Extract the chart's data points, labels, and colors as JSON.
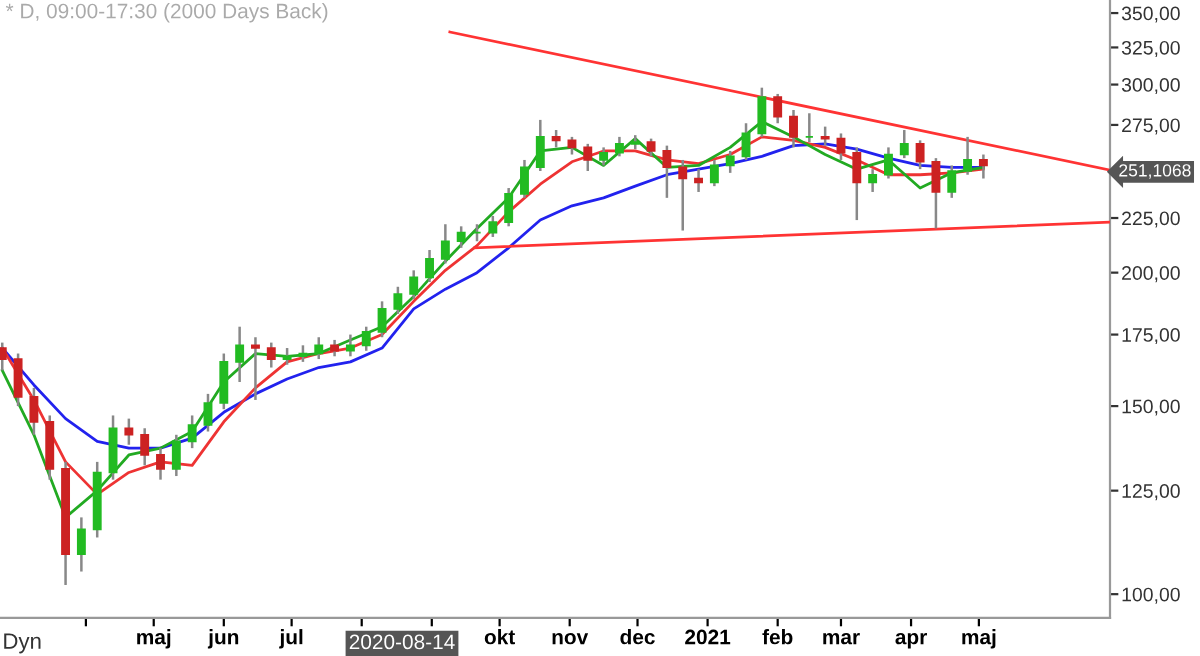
{
  "chart_data": {
    "type": "candlestick",
    "title": "* D, 09:00-17:30 (2000 Days Back)",
    "x": [
      "2020-02-24",
      "2020-03-02",
      "2020-03-09",
      "2020-03-16",
      "2020-03-23",
      "2020-03-30",
      "2020-04-06",
      "2020-04-13",
      "2020-04-20",
      "2020-04-27",
      "2020-05-04",
      "2020-05-11",
      "2020-05-18",
      "2020-05-25",
      "2020-06-01",
      "2020-06-08",
      "2020-06-15",
      "2020-06-22",
      "2020-06-29",
      "2020-07-06",
      "2020-07-13",
      "2020-07-20",
      "2020-07-27",
      "2020-08-03",
      "2020-08-10",
      "2020-08-17",
      "2020-08-24",
      "2020-08-31",
      "2020-09-07",
      "2020-09-14",
      "2020-09-21",
      "2020-09-28",
      "2020-10-05",
      "2020-10-12",
      "2020-10-19",
      "2020-10-26",
      "2020-11-02",
      "2020-11-09",
      "2020-11-16",
      "2020-11-23",
      "2020-11-30",
      "2020-12-07",
      "2020-12-14",
      "2020-12-21",
      "2020-12-28",
      "2021-01-04",
      "2021-01-11",
      "2021-01-18",
      "2021-01-25",
      "2021-02-01",
      "2021-02-08",
      "2021-02-15",
      "2021-02-22",
      "2021-03-01",
      "2021-03-08",
      "2021-03-15",
      "2021-03-22",
      "2021-03-29",
      "2021-04-05",
      "2021-04-12",
      "2021-04-19",
      "2021-04-26",
      "2021-05-03"
    ],
    "ohlc": [
      [
        170,
        172,
        162,
        166
      ],
      [
        166,
        168,
        150,
        153
      ],
      [
        153,
        156,
        141,
        145
      ],
      [
        145,
        147,
        128,
        131
      ],
      [
        131,
        133,
        102,
        109
      ],
      [
        109,
        118,
        105,
        115
      ],
      [
        115,
        133,
        113,
        130
      ],
      [
        130,
        147,
        128,
        143
      ],
      [
        143,
        146,
        138,
        141
      ],
      [
        141,
        143,
        132,
        135
      ],
      [
        135,
        137,
        128,
        131
      ],
      [
        131,
        141,
        129,
        139
      ],
      [
        139,
        147,
        137,
        144
      ],
      [
        144,
        154,
        142,
        151
      ],
      [
        151,
        168,
        149,
        165
      ],
      [
        165,
        178,
        158,
        171
      ],
      [
        171,
        174,
        152,
        170
      ],
      [
        170,
        172,
        163,
        166
      ],
      [
        166,
        170,
        164,
        167
      ],
      [
        167,
        171,
        165,
        168
      ],
      [
        168,
        174,
        166,
        171
      ],
      [
        171,
        173,
        167,
        169
      ],
      [
        169,
        175,
        167,
        171
      ],
      [
        171,
        178,
        169,
        176
      ],
      [
        176,
        188,
        174,
        185
      ],
      [
        185,
        194,
        183,
        191
      ],
      [
        191,
        201,
        189,
        198
      ],
      [
        198,
        210,
        196,
        206
      ],
      [
        206,
        222,
        204,
        214
      ],
      [
        214,
        221,
        211,
        218
      ],
      [
        218,
        222,
        214,
        218
      ],
      [
        218,
        226,
        216,
        223
      ],
      [
        223,
        240,
        221,
        237
      ],
      [
        237,
        255,
        235,
        251
      ],
      [
        251,
        278,
        249,
        268
      ],
      [
        268,
        272,
        262,
        266
      ],
      [
        266,
        268,
        258,
        262
      ],
      [
        262,
        264,
        249,
        255
      ],
      [
        255,
        262,
        252,
        259
      ],
      [
        259,
        268,
        257,
        264
      ],
      [
        264,
        269,
        261,
        265
      ],
      [
        265,
        267,
        257,
        260
      ],
      [
        260,
        263,
        235,
        251
      ],
      [
        251,
        255,
        219,
        245
      ],
      [
        245,
        250,
        238,
        243
      ],
      [
        243,
        255,
        241,
        252
      ],
      [
        252,
        260,
        248,
        257
      ],
      [
        257,
        276,
        255,
        270
      ],
      [
        270,
        298,
        268,
        292
      ],
      [
        292,
        294,
        276,
        280
      ],
      [
        280,
        284,
        262,
        268
      ],
      [
        268,
        282,
        265,
        268
      ],
      [
        268,
        274,
        263,
        267
      ],
      [
        267,
        270,
        255,
        259
      ],
      [
        259,
        262,
        224,
        243
      ],
      [
        243,
        250,
        238,
        247
      ],
      [
        247,
        262,
        245,
        258
      ],
      [
        258,
        272,
        256,
        264
      ],
      [
        264,
        266,
        250,
        254
      ],
      [
        254,
        256,
        220,
        238
      ],
      [
        238,
        252,
        235,
        249
      ],
      [
        249,
        268,
        247,
        255
      ],
      [
        255,
        258,
        245,
        252
      ]
    ],
    "colors": [
      "#cc2222",
      "#cc2222",
      "#cc2222",
      "#cc2222",
      "#cc2222",
      "#22bb22",
      "#22bb22",
      "#22bb22",
      "#cc2222",
      "#cc2222",
      "#cc2222",
      "#22bb22",
      "#22bb22",
      "#22bb22",
      "#22bb22",
      "#22bb22",
      "#cc2222",
      "#cc2222",
      "#22bb22",
      "#22bb22",
      "#22bb22",
      "#cc2222",
      "#22bb22",
      "#22bb22",
      "#22bb22",
      "#22bb22",
      "#22bb22",
      "#22bb22",
      "#22bb22",
      "#22bb22",
      "#22bb22",
      "#22bb22",
      "#22bb22",
      "#22bb22",
      "#22bb22",
      "#cc2222",
      "#cc2222",
      "#cc2222",
      "#22bb22",
      "#22bb22",
      "#22bb22",
      "#cc2222",
      "#cc2222",
      "#cc2222",
      "#cc2222",
      "#22bb22",
      "#22bb22",
      "#22bb22",
      "#22bb22",
      "#cc2222",
      "#cc2222",
      "#22bb22",
      "#cc2222",
      "#cc2222",
      "#cc2222",
      "#22bb22",
      "#22bb22",
      "#22bb22",
      "#cc2222",
      "#cc2222",
      "#22bb22",
      "#22bb22",
      "#cc2222"
    ],
    "series": [
      {
        "type": "line",
        "color": "#2222ee",
        "x": [
          "2020-02-24",
          "2020-03-09",
          "2020-03-23",
          "2020-04-06",
          "2020-04-20",
          "2020-05-04",
          "2020-05-18",
          "2020-06-01",
          "2020-06-15",
          "2020-06-29",
          "2020-07-13",
          "2020-07-27",
          "2020-08-10",
          "2020-08-24",
          "2020-09-07",
          "2020-09-21",
          "2020-10-05",
          "2020-10-19",
          "2020-11-02",
          "2020-11-16",
          "2020-11-30",
          "2020-12-14",
          "2020-12-28",
          "2021-01-11",
          "2021-01-25",
          "2021-02-08",
          "2021-02-22",
          "2021-03-08",
          "2021-03-22",
          "2021-04-05",
          "2021-04-19",
          "2021-05-03"
        ],
        "values": [
          170,
          157,
          146,
          139,
          137,
          137,
          140,
          148,
          154,
          159,
          163,
          165,
          170,
          185,
          193,
          200,
          211,
          224,
          231,
          235,
          241,
          247,
          250,
          253,
          257,
          263,
          264,
          261,
          256,
          252,
          251,
          251
        ]
      },
      {
        "type": "line",
        "color": "#ee3333",
        "x": [
          "2020-02-24",
          "2020-03-09",
          "2020-03-23",
          "2020-04-06",
          "2020-04-20",
          "2020-05-04",
          "2020-05-18",
          "2020-06-01",
          "2020-06-15",
          "2020-06-29",
          "2020-07-13",
          "2020-07-27",
          "2020-08-10",
          "2020-08-24",
          "2020-09-07",
          "2020-09-21",
          "2020-10-05",
          "2020-10-19",
          "2020-11-02",
          "2020-11-16",
          "2020-11-30",
          "2020-12-14",
          "2020-12-28",
          "2021-01-11",
          "2021-01-25",
          "2021-02-08",
          "2021-02-22",
          "2021-03-08",
          "2021-03-22",
          "2021-04-05",
          "2021-04-19",
          "2021-05-03"
        ],
        "values": [
          170,
          152,
          133,
          124,
          130,
          133,
          132,
          145,
          156,
          165,
          168,
          170,
          175,
          188,
          201,
          212,
          228,
          242,
          254,
          260,
          260,
          255,
          253,
          258,
          268,
          266,
          262,
          255,
          247,
          247,
          248,
          250
        ]
      },
      {
        "type": "line",
        "color": "#22aa22",
        "x": [
          "2020-02-24",
          "2020-03-09",
          "2020-03-23",
          "2020-04-06",
          "2020-04-20",
          "2020-05-04",
          "2020-05-18",
          "2020-06-01",
          "2020-06-15",
          "2020-06-29",
          "2020-07-13",
          "2020-07-27",
          "2020-08-10",
          "2020-08-24",
          "2020-09-07",
          "2020-09-21",
          "2020-10-05",
          "2020-10-19",
          "2020-11-02",
          "2020-11-16",
          "2020-11-30",
          "2020-12-14",
          "2020-12-28",
          "2021-01-11",
          "2021-01-25",
          "2021-02-08",
          "2021-02-22",
          "2021-03-08",
          "2021-03-22",
          "2021-04-05",
          "2021-04-19",
          "2021-05-03"
        ],
        "values": [
          162,
          141,
          118,
          125,
          135,
          137,
          142,
          158,
          168,
          167,
          168,
          173,
          178,
          190,
          205,
          220,
          235,
          260,
          262,
          252,
          267,
          251,
          252,
          262,
          277,
          268,
          258,
          250,
          255,
          240,
          248,
          251
        ]
      },
      {
        "type": "line",
        "color": "#ff3333",
        "x": [
          "2020-09-09",
          "2021-06-28"
        ],
        "values": [
          336,
          249.5
        ]
      },
      {
        "type": "line",
        "color": "#ff3333",
        "x": [
          "2020-09-20",
          "2021-06-28"
        ],
        "values": [
          211,
          223
        ]
      }
    ],
    "log": "y",
    "xlim": [
      "2020-02-23",
      "2021-06-28"
    ],
    "ylim": [
      95,
      360
    ],
    "yticks": [
      {
        "value": 100,
        "label": "100,00"
      },
      {
        "value": 125,
        "label": "125,00"
      },
      {
        "value": 150,
        "label": "150,00"
      },
      {
        "value": 175,
        "label": "175,00"
      },
      {
        "value": 200,
        "label": "200,00"
      },
      {
        "value": 225,
        "label": "225,00"
      },
      {
        "value": 250,
        "label": null
      },
      {
        "value": 275,
        "label": "275,00"
      },
      {
        "value": 300,
        "label": "300,00"
      },
      {
        "value": 325,
        "label": "325,00"
      },
      {
        "value": 350,
        "label": "350,00"
      }
    ],
    "xticks": [
      {
        "value": "2020-04-01",
        "label": null
      },
      {
        "value": "2020-05-01",
        "label": "maj"
      },
      {
        "value": "2020-06-01",
        "label": "jun"
      },
      {
        "value": "2020-07-01",
        "label": "jul"
      },
      {
        "value": "2020-08-01",
        "label": null
      },
      {
        "value": "2020-09-01",
        "label": null
      },
      {
        "value": "2020-10-01",
        "label": "okt"
      },
      {
        "value": "2020-11-01",
        "label": "nov"
      },
      {
        "value": "2020-12-01",
        "label": "dec"
      },
      {
        "value": "2021-01-01",
        "label": "2021"
      },
      {
        "value": "2021-02-01",
        "label": "feb"
      },
      {
        "value": "2021-03-01",
        "label": "mar"
      },
      {
        "value": "2021-04-01",
        "label": "apr"
      },
      {
        "value": "2021-05-01",
        "label": "maj"
      }
    ],
    "annotations": [
      "Dyn",
      "2020-08-14",
      "251,1068"
    ],
    "grid": false,
    "legend": false
  }
}
